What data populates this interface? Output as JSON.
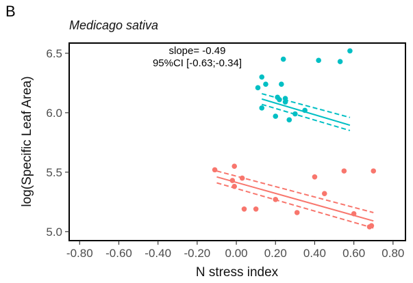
{
  "panel_label": "B",
  "chart_data": {
    "type": "scatter",
    "title": "Medicago sativa",
    "xlabel": "N stress index",
    "ylabel": "log(Specific Leaf Area)",
    "xlim": [
      -0.85,
      0.86
    ],
    "ylim": [
      4.93,
      6.58
    ],
    "x_ticks": [
      -0.8,
      -0.6,
      -0.4,
      -0.2,
      0.0,
      0.2,
      0.4,
      0.6,
      0.8
    ],
    "x_tick_labels": [
      "-0.80",
      "-0.60",
      "-0.40",
      "-0.20",
      "0.00",
      "0.20",
      "0.40",
      "0.60",
      "0.80"
    ],
    "y_ticks": [
      5.0,
      5.5,
      6.0,
      6.5
    ],
    "y_tick_labels": [
      "5.0",
      "5.5",
      "6.0",
      "6.5"
    ],
    "grid": false,
    "legend": "none",
    "annotations": [
      "slope= -0.49",
      "95%CI [-0.63;-0.34]"
    ],
    "series": [
      {
        "color": "#00BFC4",
        "points": [
          [
            0.11,
            6.21
          ],
          [
            0.13,
            6.3
          ],
          [
            0.13,
            6.04
          ],
          [
            0.15,
            6.24
          ],
          [
            0.2,
            5.97
          ],
          [
            0.21,
            6.13
          ],
          [
            0.22,
            6.11
          ],
          [
            0.23,
            6.24
          ],
          [
            0.24,
            6.45
          ],
          [
            0.25,
            6.12
          ],
          [
            0.25,
            6.09
          ],
          [
            0.27,
            5.94
          ],
          [
            0.3,
            5.99
          ],
          [
            0.35,
            6.02
          ],
          [
            0.42,
            6.44
          ],
          [
            0.53,
            6.43
          ],
          [
            0.58,
            6.52
          ]
        ],
        "fit": {
          "x": [
            0.13,
            0.58
          ],
          "y": [
            6.115,
            5.895
          ]
        },
        "ci_upper": {
          "x": [
            0.13,
            0.58
          ],
          "y": [
            6.16,
            5.96
          ]
        },
        "ci_lower": {
          "x": [
            0.13,
            0.58
          ],
          "y": [
            6.07,
            5.85
          ]
        }
      },
      {
        "color": "#F8766D",
        "points": [
          [
            -0.11,
            5.52
          ],
          [
            -0.02,
            5.43
          ],
          [
            -0.01,
            5.38
          ],
          [
            -0.01,
            5.55
          ],
          [
            0.03,
            5.45
          ],
          [
            0.04,
            5.19
          ],
          [
            0.1,
            5.19
          ],
          [
            0.2,
            5.27
          ],
          [
            0.31,
            5.16
          ],
          [
            0.4,
            5.46
          ],
          [
            0.45,
            5.32
          ],
          [
            0.55,
            5.51
          ],
          [
            0.6,
            5.15
          ],
          [
            0.68,
            5.04
          ],
          [
            0.69,
            5.05
          ],
          [
            0.7,
            5.51
          ]
        ],
        "fit": {
          "x": [
            -0.1,
            0.7
          ],
          "y": [
            5.46,
            5.09
          ]
        },
        "ci_upper": {
          "x": [
            -0.1,
            0.7
          ],
          "y": [
            5.51,
            5.16
          ]
        },
        "ci_lower": {
          "x": [
            -0.1,
            0.7
          ],
          "y": [
            5.41,
            5.03
          ]
        }
      }
    ]
  }
}
